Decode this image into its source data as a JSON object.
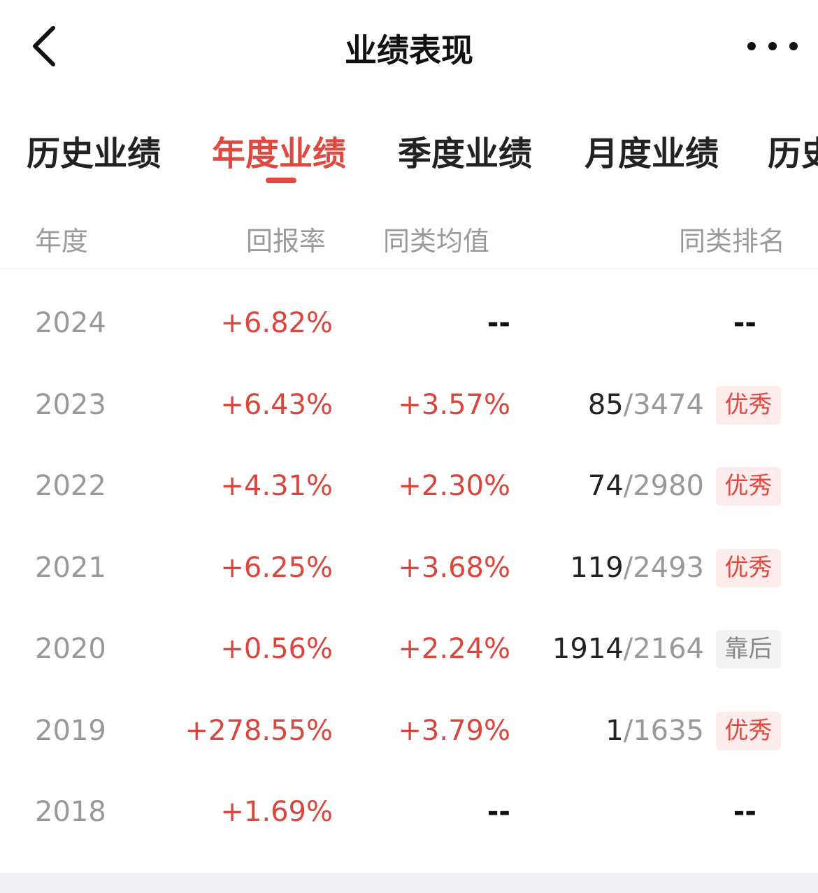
{
  "header": {
    "title": "业绩表现"
  },
  "tabs": [
    {
      "label": "历史业绩",
      "active": false
    },
    {
      "label": "年度业绩",
      "active": true
    },
    {
      "label": "季度业绩",
      "active": false
    },
    {
      "label": "月度业绩",
      "active": false
    },
    {
      "label": "历史",
      "active": false
    }
  ],
  "columns": [
    "年度",
    "回报率",
    "同类均值",
    "同类排名"
  ],
  "rows": [
    {
      "year": "2024",
      "return": "+6.82%",
      "avg": "--",
      "rank": null,
      "rank_total": null,
      "badge": null
    },
    {
      "year": "2023",
      "return": "+6.43%",
      "avg": "+3.57%",
      "rank": "85",
      "rank_total": "/3474",
      "badge": "优秀"
    },
    {
      "year": "2022",
      "return": "+4.31%",
      "avg": "+2.30%",
      "rank": "74",
      "rank_total": "/2980",
      "badge": "优秀"
    },
    {
      "year": "2021",
      "return": "+6.25%",
      "avg": "+3.68%",
      "rank": "119",
      "rank_total": "/2493",
      "badge": "优秀"
    },
    {
      "year": "2020",
      "return": "+0.56%",
      "avg": "+2.24%",
      "rank": "1914",
      "rank_total": "/2164",
      "badge": "靠后"
    },
    {
      "year": "2019",
      "return": "+278.55%",
      "avg": "+3.79%",
      "rank": "1",
      "rank_total": "/1635",
      "badge": "优秀"
    },
    {
      "year": "2018",
      "return": "+1.69%",
      "avg": "--",
      "rank": null,
      "rank_total": null,
      "badge": null
    }
  ],
  "empty_value": "--",
  "colors": {
    "accent": "#e0493f",
    "positive": "#d9463d",
    "muted": "#999999"
  },
  "icons": {
    "back": "chevron-left-icon",
    "more": "more-dots-icon"
  }
}
